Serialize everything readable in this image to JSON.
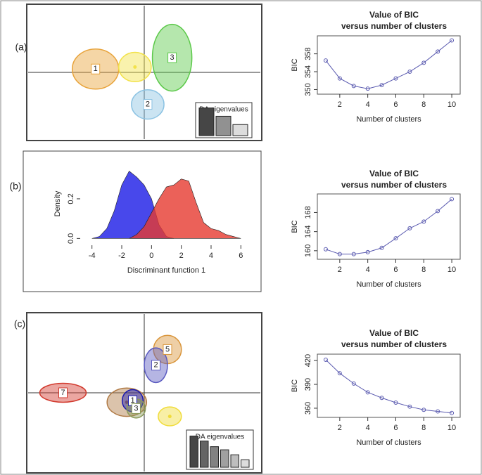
{
  "chart_data": [
    {
      "type": "da-scatter",
      "label": "(a)",
      "xlim": [
        -1,
        1
      ],
      "ylim": [
        -1,
        1
      ],
      "clusters": [
        {
          "name": "1",
          "color": "#e8a33a",
          "x": -0.42,
          "y": 0.05,
          "rx": 0.2,
          "ry": 0.3
        },
        {
          "name": null,
          "color": "#f2e24a",
          "x": -0.08,
          "y": 0.08,
          "rx": 0.14,
          "ry": 0.22
        },
        {
          "name": "3",
          "color": "#5cc94a",
          "x": 0.24,
          "y": 0.22,
          "rx": 0.17,
          "ry": 0.5
        },
        {
          "name": "2",
          "color": "#8cc3e3",
          "x": 0.03,
          "y": -0.48,
          "rx": 0.14,
          "ry": 0.22
        }
      ],
      "eigenvalues": {
        "title": "DA eigenvalues",
        "values": [
          3,
          2.1,
          1.2
        ],
        "ylim": [
          0,
          3.2
        ]
      }
    },
    {
      "type": "line",
      "title": [
        "Value of BIC",
        "versus number of clusters"
      ],
      "xlabel": "Number of clusters",
      "ylabel": "BIC",
      "color": "#5b5bb0",
      "x": [
        1,
        2,
        3,
        4,
        5,
        6,
        7,
        8,
        9,
        10
      ],
      "values": [
        356.5,
        352.5,
        350.8,
        350.2,
        351,
        352.5,
        354,
        356,
        358.5,
        361
      ],
      "xlim": [
        0.6,
        10.4
      ],
      "ylim": [
        349.6,
        361.4
      ],
      "xticks": [
        2,
        4,
        6,
        8,
        10
      ],
      "yticks": [
        350,
        354,
        358
      ]
    },
    {
      "type": "density",
      "label": "(b)",
      "xlabel": "Discriminant function 1",
      "ylabel": "Density",
      "series": [
        {
          "color": "#1a1ae6",
          "x": [
            -4,
            -3.5,
            -3,
            -2.5,
            -2,
            -1.5,
            -1,
            -0.5,
            0,
            0.5,
            1,
            1.5
          ],
          "values": [
            0,
            0.01,
            0.05,
            0.14,
            0.27,
            0.34,
            0.31,
            0.27,
            0.2,
            0.07,
            0.01,
            0
          ]
        },
        {
          "color": "#e63a30",
          "x": [
            -1.5,
            -1,
            -0.5,
            0,
            0.5,
            1,
            1.5,
            2,
            2.5,
            3,
            3.5,
            4,
            4.5,
            5,
            5.5,
            6
          ],
          "values": [
            0,
            0.02,
            0.06,
            0.13,
            0.2,
            0.26,
            0.27,
            0.3,
            0.29,
            0.18,
            0.08,
            0.05,
            0.04,
            0.02,
            0.01,
            0
          ]
        }
      ],
      "xlim": [
        -4.6,
        6.6
      ],
      "ylim": [
        -0.02,
        0.37
      ],
      "xticks": [
        -4,
        -2,
        0,
        2,
        4,
        6
      ],
      "yticks": [
        {
          "value": 0,
          "label": "0.0"
        },
        0.2
      ]
    },
    {
      "type": "line",
      "title": [
        "Value of BIC",
        "versus number of clusters"
      ],
      "xlabel": "Number of clusters",
      "ylabel": "BIC",
      "color": "#5b5bb0",
      "x": [
        1,
        2,
        3,
        4,
        5,
        6,
        7,
        8,
        9,
        10
      ],
      "values": [
        160.3,
        159.3,
        159.3,
        159.7,
        160.6,
        162.6,
        164.7,
        166.1,
        168.3,
        170.8
      ],
      "xlim": [
        0.6,
        10.4
      ],
      "ylim": [
        158.8,
        171.3
      ],
      "xticks": [
        2,
        4,
        6,
        8,
        10
      ],
      "yticks": [
        160,
        164,
        168
      ]
    },
    {
      "type": "da-scatter",
      "label": "(c)",
      "xlim": [
        -1,
        1
      ],
      "ylim": [
        -1,
        1
      ],
      "clusters": [
        {
          "name": "7",
          "color": "#d23a2e",
          "x": -0.7,
          "y": 0.0,
          "rx": 0.2,
          "ry": 0.12
        },
        {
          "name": "5",
          "color": "#d9953a",
          "x": 0.2,
          "y": 0.55,
          "rx": 0.12,
          "ry": 0.18
        },
        {
          "name": "2",
          "color": "#5a5ac0",
          "x": 0.1,
          "y": 0.35,
          "rx": 0.1,
          "ry": 0.22
        },
        {
          "name": null,
          "color": "#b07a45",
          "x": -0.15,
          "y": -0.12,
          "rx": 0.17,
          "ry": 0.18
        },
        {
          "name": "1",
          "color": "#1a1ab0",
          "x": -0.1,
          "y": -0.1,
          "rx": 0.09,
          "ry": 0.14
        },
        {
          "name": "3",
          "color": "#8a9a5a",
          "x": -0.07,
          "y": -0.2,
          "rx": 0.08,
          "ry": 0.12
        },
        {
          "name": null,
          "color": "#f0dc3a",
          "x": 0.22,
          "y": -0.3,
          "rx": 0.1,
          "ry": 0.12
        }
      ],
      "eigenvalues": {
        "title": "DA eigenvalues",
        "values": [
          5,
          4.2,
          3.3,
          2.8,
          2,
          1.2
        ],
        "ylim": [
          0,
          5.4
        ]
      }
    },
    {
      "type": "line",
      "title": [
        "Value of BIC",
        "versus number of clusters"
      ],
      "xlabel": "Number of clusters",
      "ylabel": "BIC",
      "color": "#5b5bb0",
      "x": [
        1,
        2,
        3,
        4,
        5,
        6,
        7,
        8,
        9,
        10
      ],
      "values": [
        421,
        404,
        391,
        380,
        373,
        367,
        362,
        358,
        356,
        354
      ],
      "xlim": [
        0.6,
        10.4
      ],
      "ylim": [
        352,
        424.5
      ],
      "xticks": [
        2,
        4,
        6,
        8,
        10
      ],
      "yticks": [
        360,
        390,
        420
      ]
    }
  ]
}
